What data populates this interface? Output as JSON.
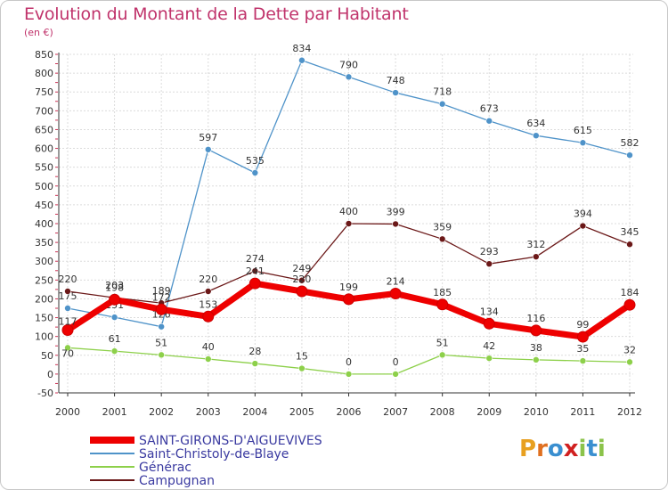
{
  "title": "Evolution du Montant de la Dette par Habitant",
  "subtitle": "(en €)",
  "logo": {
    "text": "Proxiti"
  },
  "chart_data": {
    "type": "line",
    "x": [
      "2000",
      "2001",
      "2002",
      "2003",
      "2004",
      "2005",
      "2006",
      "2007",
      "2008",
      "2009",
      "2010",
      "2011",
      "2012"
    ],
    "ylim": [
      -50,
      850
    ],
    "yticks": [
      -50,
      0,
      50,
      100,
      150,
      200,
      250,
      300,
      350,
      400,
      450,
      500,
      550,
      600,
      650,
      700,
      750,
      800,
      850
    ],
    "grid": true,
    "legend_position": "bottom-left",
    "series": [
      {
        "name": "Saint-Christoly-de-Blaye",
        "color": "#4f93c9",
        "values": [
          175,
          151,
          126,
          597,
          535,
          834,
          790,
          748,
          718,
          673,
          634,
          615,
          582
        ],
        "labels": [
          "175",
          "151",
          "126",
          "597",
          "535",
          "834",
          "790",
          "748",
          "718",
          "673",
          "634",
          "615",
          "582"
        ]
      },
      {
        "name": "Générac",
        "color": "#8dd04a",
        "values": [
          70,
          61,
          51,
          40,
          28,
          15,
          0,
          0,
          51,
          42,
          38,
          35,
          32
        ],
        "labels": [
          "70",
          "61",
          "51",
          "40",
          "28",
          "15",
          "0",
          "0",
          "51",
          "42",
          "38",
          "35",
          "32"
        ]
      },
      {
        "name": "Campugnan",
        "color": "#6b1818",
        "values": [
          220,
          203,
          189,
          220,
          274,
          249,
          400,
          399,
          359,
          293,
          312,
          394,
          345
        ],
        "labels": [
          "220",
          "203",
          "189",
          "220",
          "274",
          "249",
          "400",
          "399",
          "359",
          "293",
          "312",
          "394",
          "345"
        ]
      },
      {
        "name": "SAINT-GIRONS-D'AIGUEVIVES",
        "color": "#ee0000",
        "values": [
          117,
          198,
          172,
          153,
          241,
          220,
          199,
          214,
          185,
          134,
          116,
          99,
          184
        ],
        "labels": [
          "117",
          "198",
          "172",
          "153",
          "241",
          "220",
          "199",
          "214",
          "185",
          "134",
          "116",
          "99",
          "184"
        ]
      }
    ]
  }
}
